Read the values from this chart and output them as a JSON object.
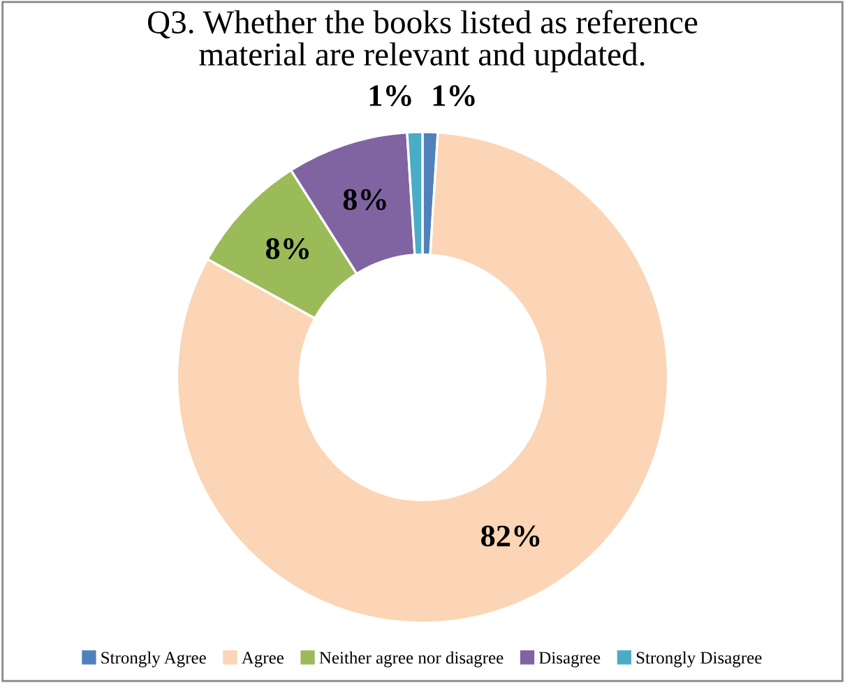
{
  "chart_data": {
    "type": "donut",
    "title": "Q3. Whether the books listed as reference\nmaterial are relevant and updated.",
    "categories": [
      "Strongly Agree",
      "Agree",
      "Neither agree nor disagree",
      "Disagree",
      "Strongly Disagree"
    ],
    "values": [
      1,
      82,
      8,
      8,
      1
    ],
    "colors": [
      "#4f81bd",
      "#fbd5b5",
      "#9bbb59",
      "#8064a2",
      "#4bacc6"
    ],
    "value_labels": [
      "1%",
      "82%",
      "8%",
      "8%",
      "1%"
    ],
    "legend": "bottom"
  }
}
